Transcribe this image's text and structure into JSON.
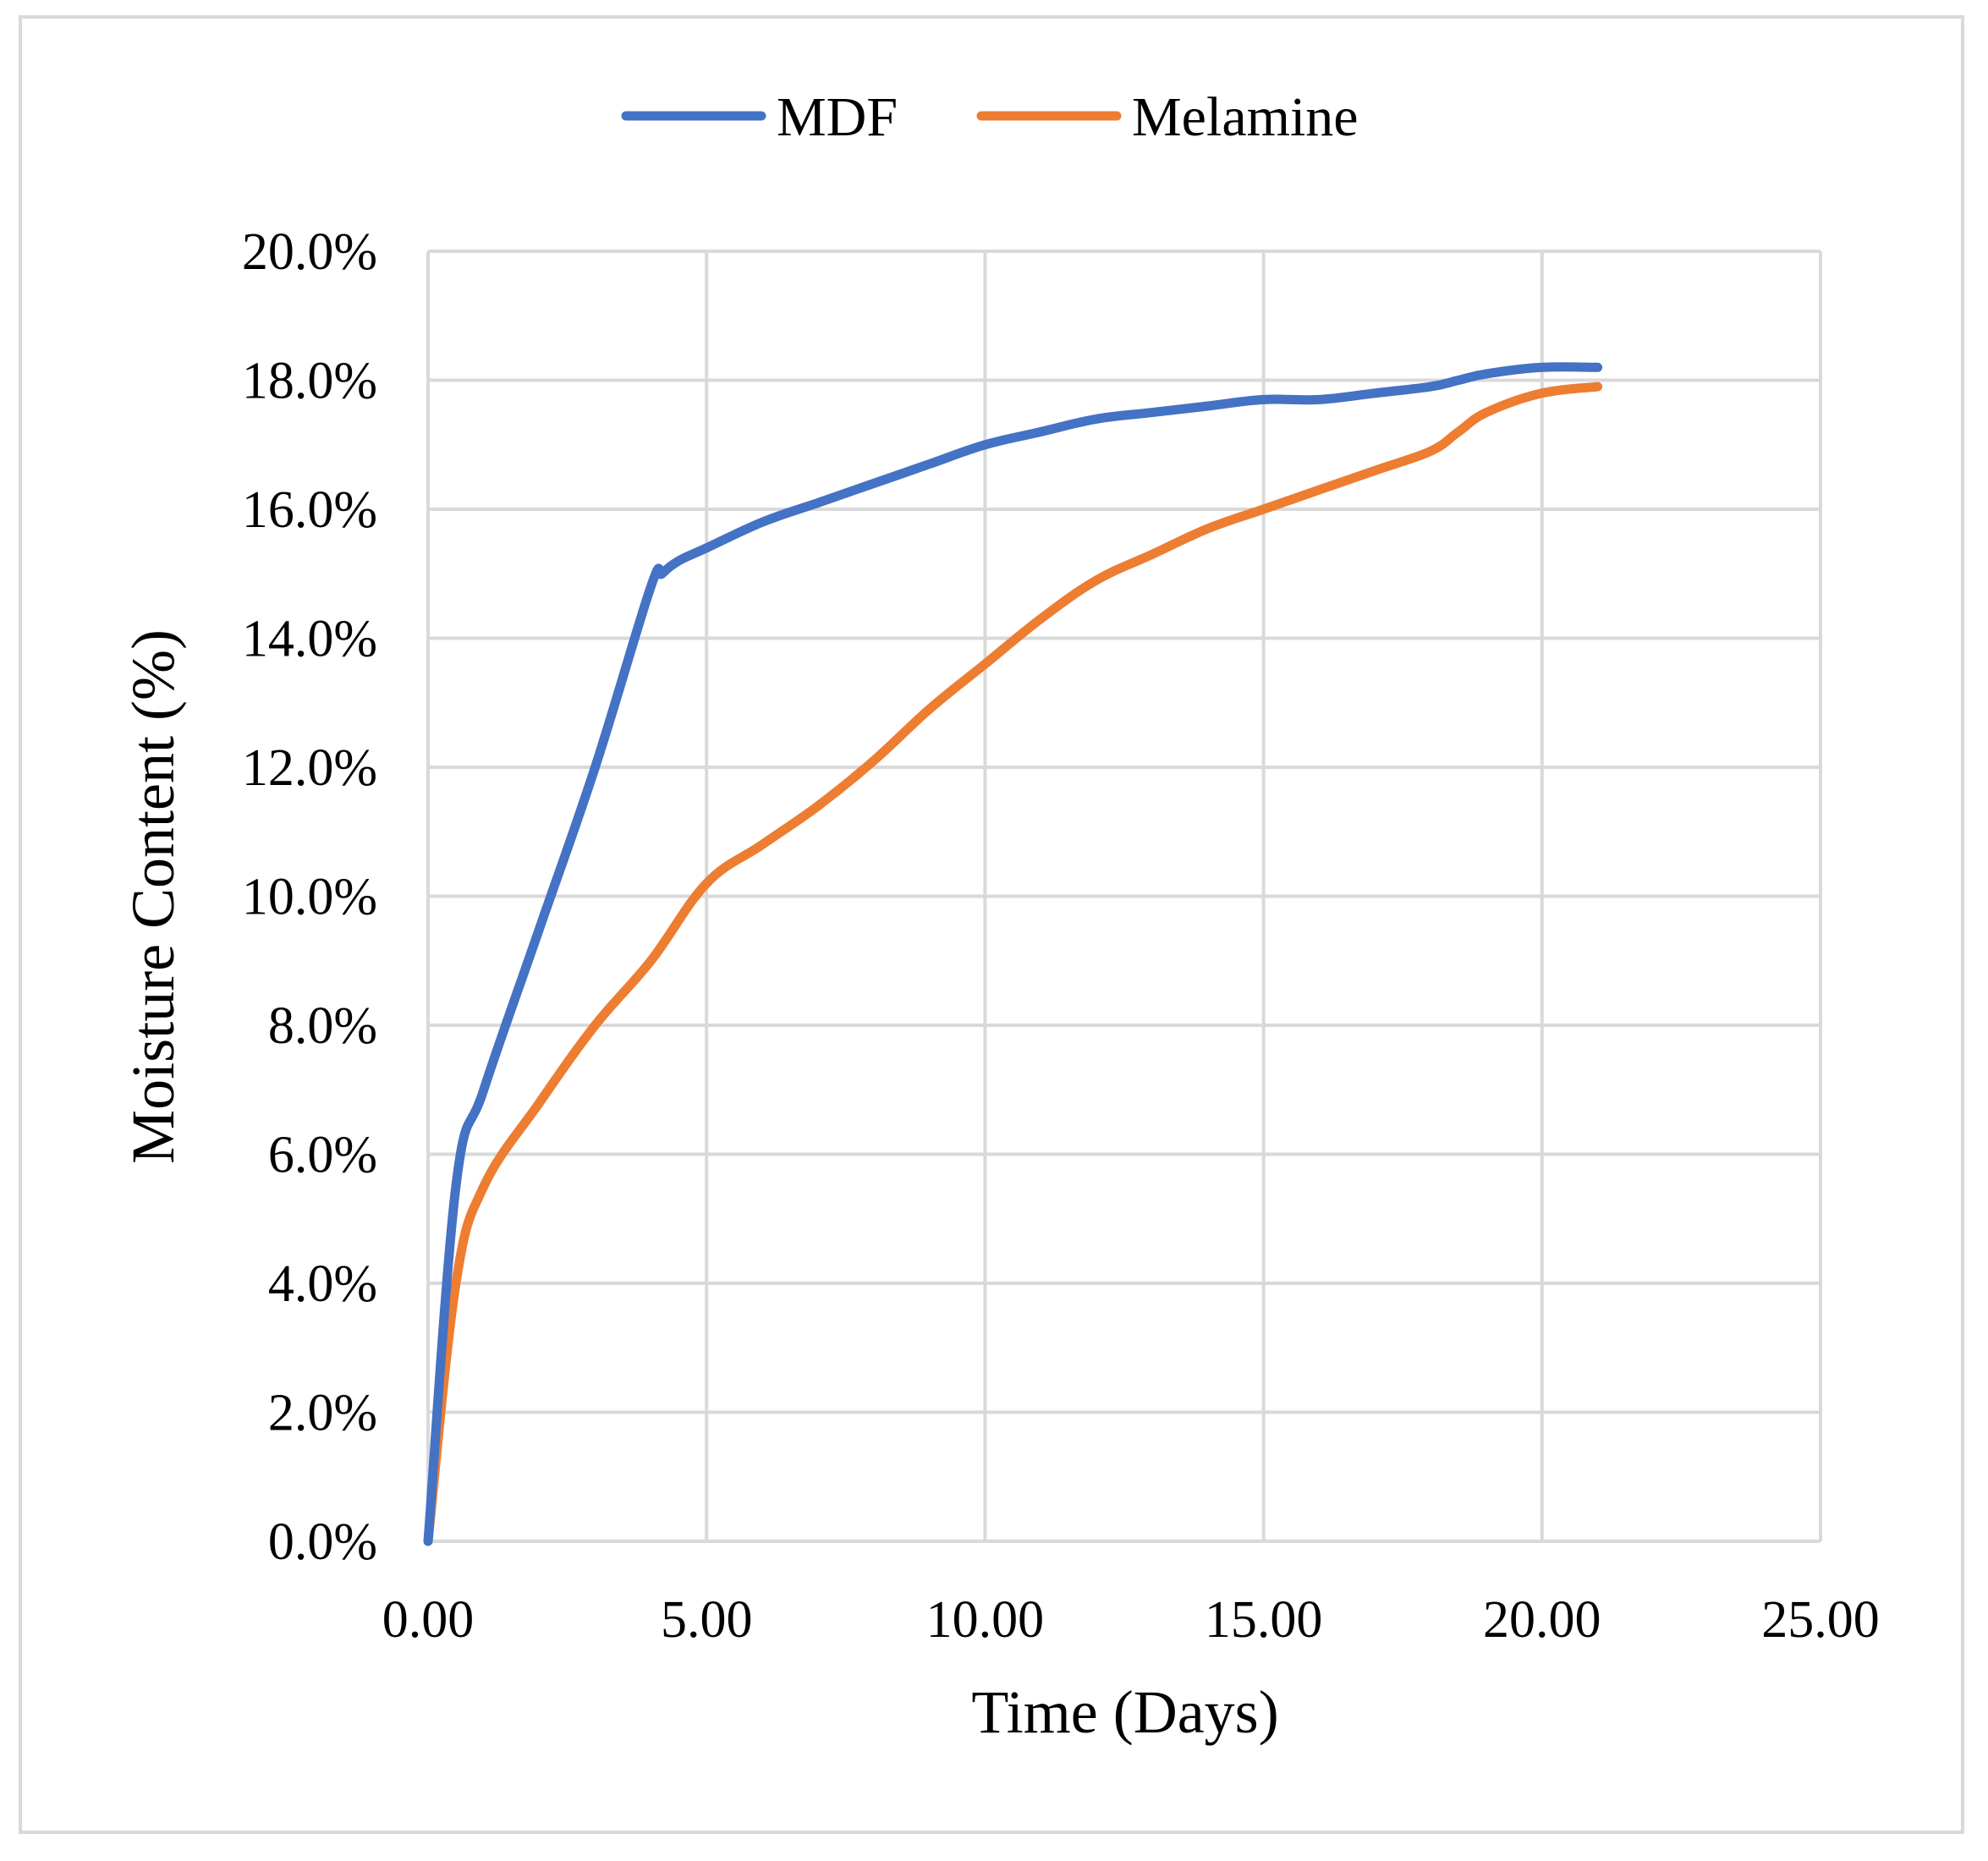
{
  "chart_data": {
    "type": "line",
    "title": "",
    "xlabel": "Time (Days)",
    "ylabel": "Moisture Content (%)",
    "xlim": [
      0,
      25
    ],
    "ylim": [
      0,
      0.2
    ],
    "x_ticks": [
      0,
      5,
      10,
      15,
      20,
      25
    ],
    "x_tick_labels": [
      "0.00",
      "5.00",
      "10.00",
      "15.00",
      "20.00",
      "25.00"
    ],
    "y_ticks": [
      0,
      0.02,
      0.04,
      0.06,
      0.08,
      0.1,
      0.12,
      0.14,
      0.16,
      0.18,
      0.2
    ],
    "y_tick_labels": [
      "0.0%",
      "2.0%",
      "4.0%",
      "6.0%",
      "8.0%",
      "10.0%",
      "12.0%",
      "14.0%",
      "16.0%",
      "18.0%",
      "20.0%"
    ],
    "grid": true,
    "legend_position": "top-center",
    "series": [
      {
        "name": "MDF",
        "color": "#4472c4",
        "x": [
          0,
          0.5,
          1,
          2,
          3,
          4,
          4.2,
          4.5,
          5,
          6,
          7,
          8,
          9,
          10,
          11,
          12,
          13,
          14,
          15,
          16,
          17,
          18,
          18.5,
          19,
          20,
          21
        ],
        "y": [
          0,
          0.055,
          0.07,
          0.095,
          0.12,
          0.148,
          0.15,
          0.152,
          0.154,
          0.158,
          0.161,
          0.164,
          0.167,
          0.17,
          0.172,
          0.174,
          0.175,
          0.176,
          0.177,
          0.177,
          0.178,
          0.179,
          0.18,
          0.181,
          0.182,
          0.182
        ]
      },
      {
        "name": "Melamine",
        "color": "#ed7d31",
        "x": [
          0,
          0.5,
          1,
          2,
          3,
          4,
          5,
          6,
          7,
          8,
          9,
          10,
          11,
          12,
          13,
          14,
          15,
          16,
          17,
          18,
          18.5,
          19,
          20,
          21
        ],
        "y": [
          0,
          0.04,
          0.055,
          0.068,
          0.08,
          0.09,
          0.102,
          0.108,
          0.114,
          0.121,
          0.129,
          0.136,
          0.143,
          0.149,
          0.153,
          0.157,
          0.16,
          0.163,
          0.166,
          0.169,
          0.172,
          0.175,
          0.178,
          0.179
        ]
      }
    ]
  }
}
